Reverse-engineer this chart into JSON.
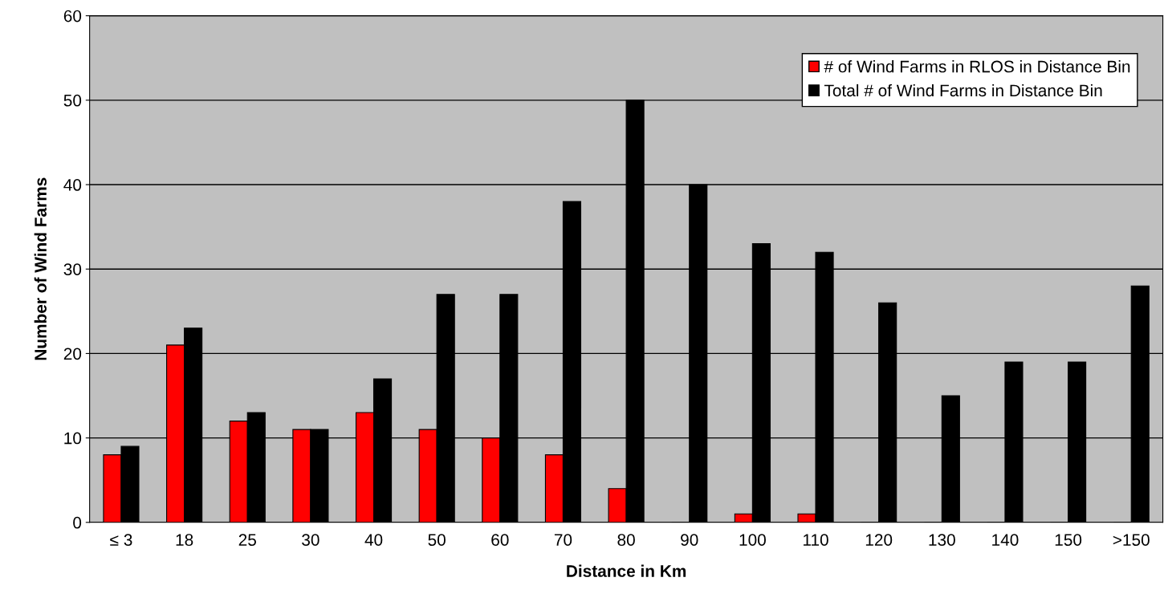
{
  "chart_data": {
    "type": "bar",
    "xlabel": "Distance in Km",
    "ylabel": "Number of Wind Farms",
    "categories": [
      "≤ 3",
      "18",
      "25",
      "30",
      "40",
      "50",
      "60",
      "70",
      "80",
      "90",
      "100",
      "110",
      "120",
      "130",
      "140",
      "150",
      ">150"
    ],
    "series": [
      {
        "name": "# of Wind Farms in RLOS in Distance Bin",
        "color": "#ff0000",
        "values": [
          8,
          21,
          12,
          11,
          13,
          11,
          10,
          8,
          4,
          0,
          1,
          1,
          0,
          0,
          0,
          0,
          0
        ]
      },
      {
        "name": "Total # of Wind Farms in Distance Bin",
        "color": "#000000",
        "values": [
          9,
          23,
          13,
          11,
          17,
          27,
          27,
          38,
          50,
          40,
          33,
          32,
          26,
          15,
          19,
          19,
          28
        ]
      }
    ],
    "ylim": [
      0,
      60
    ],
    "yticks": [
      0,
      10,
      20,
      30,
      40,
      50,
      60
    ],
    "grid": "y",
    "legend": "top right"
  }
}
